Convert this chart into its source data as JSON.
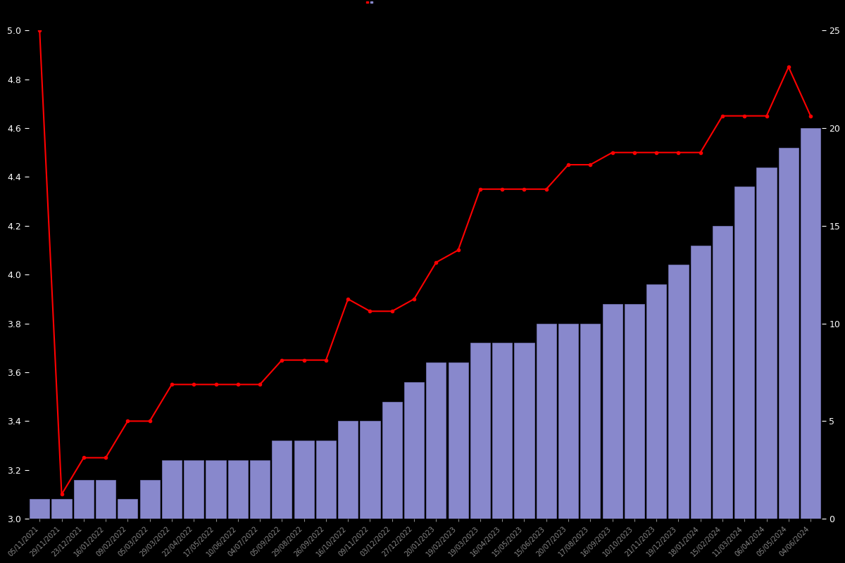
{
  "background_color": "#000000",
  "bar_color": "#8888cc",
  "bar_edge_color": "#7777bb",
  "line_color": "#ff0000",
  "line_marker": "o",
  "line_marker_size": 3,
  "yleft_min": 3.0,
  "yleft_max": 5.0,
  "yright_min": 0,
  "yright_max": 25,
  "ytick_color": "#ffffff",
  "xtick_color": "#888888",
  "dates": [
    "05/11/2021",
    "29/11/2021",
    "23/12/2021",
    "16/01/2022",
    "09/02/2022",
    "05/03/2022",
    "29/03/2022",
    "22/04/2022",
    "17/05/2022",
    "10/06/2022",
    "04/07/2022",
    "05/09/2022",
    "29/08/2022",
    "26/09/2022",
    "16/10/2022",
    "09/11/2022",
    "03/12/2022",
    "27/12/2022",
    "20/01/2023",
    "19/02/2023",
    "19/03/2023",
    "16/04/2023",
    "15/05/2023",
    "15/06/2023",
    "20/07/2023",
    "17/08/2023",
    "16/09/2023",
    "10/10/2023",
    "21/11/2023",
    "19/12/2023",
    "18/01/2024",
    "15/02/2024",
    "11/03/2024",
    "06/04/2024",
    "05/05/2024",
    "04/06/2024"
  ],
  "bar_values": [
    1,
    1,
    2,
    2,
    1,
    2,
    3,
    3,
    3,
    3,
    3,
    4,
    4,
    4,
    5,
    5,
    6,
    7,
    8,
    8,
    9,
    9,
    9,
    10,
    10,
    10,
    11,
    11,
    12,
    13,
    14,
    15,
    17,
    18,
    19,
    20
  ],
  "line_values": [
    5.0,
    3.1,
    3.25,
    3.25,
    3.4,
    3.4,
    3.55,
    3.55,
    3.55,
    3.55,
    3.55,
    3.65,
    3.65,
    3.65,
    3.9,
    3.85,
    3.85,
    3.9,
    4.05,
    4.1,
    4.35,
    4.35,
    4.35,
    4.35,
    4.45,
    4.45,
    4.5,
    4.5,
    4.5,
    4.5,
    4.5,
    4.65,
    4.65,
    4.65,
    4.85,
    4.65
  ]
}
